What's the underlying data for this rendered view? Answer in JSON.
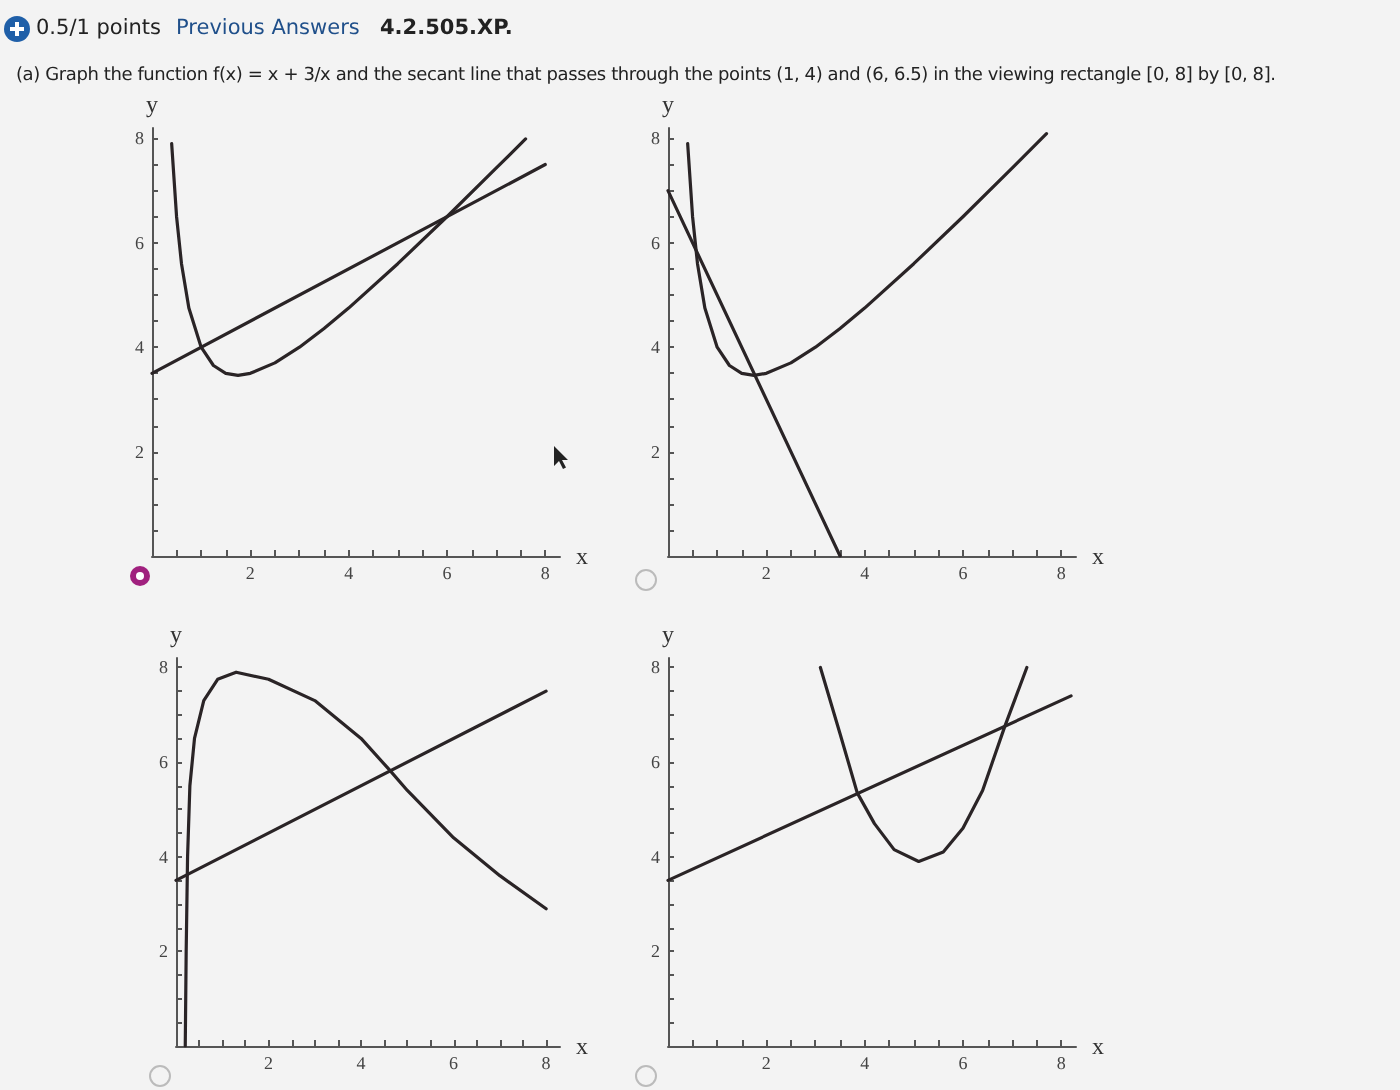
{
  "chart_data": [
    {
      "type": "other",
      "annotations": [
        "0.5/1 points",
        "Previous Answers",
        "4.2.505.XP.",
        "(a) Graph the function f(x) = x + 3/x and the secant line that passes through the points (1, 4) and (6, 6.5) in the viewing rectangle [0, 8] by [0, 8]."
      ]
    },
    {
      "type": "line",
      "xlabel": "x",
      "ylabel": "y",
      "xlim": [
        0,
        8.3
      ],
      "ylim": [
        0,
        8.2
      ],
      "xticks": [
        {
          "value": 0.5,
          "label": null
        },
        {
          "value": 1,
          "label": null
        },
        {
          "value": 1.5,
          "label": null
        },
        2,
        {
          "value": 2.5,
          "label": null
        },
        {
          "value": 3,
          "label": null
        },
        {
          "value": 3.5,
          "label": null
        },
        4,
        {
          "value": 4.5,
          "label": null
        },
        {
          "value": 5,
          "label": null
        },
        {
          "value": 5.5,
          "label": null
        },
        6,
        {
          "value": 6.5,
          "label": null
        },
        {
          "value": 7,
          "label": null
        },
        {
          "value": 7.5,
          "label": null
        },
        8
      ],
      "yticks": [
        {
          "value": 0.5,
          "label": null
        },
        {
          "value": 1,
          "label": null
        },
        {
          "value": 1.5,
          "label": null
        },
        2,
        {
          "value": 2.5,
          "label": null
        },
        {
          "value": 3,
          "label": null
        },
        {
          "value": 3.5,
          "label": null
        },
        4,
        {
          "value": 4.5,
          "label": null
        },
        {
          "value": 5,
          "label": null
        },
        {
          "value": 5.5,
          "label": null
        },
        6,
        {
          "value": 6.5,
          "label": null
        },
        {
          "value": 7,
          "label": null
        },
        {
          "value": 7.5,
          "label": null
        },
        8
      ],
      "marker": "none",
      "series": [
        {
          "color": "#2a2426",
          "x": [
            0.4,
            0.5,
            0.6,
            0.75,
            1,
            1.25,
            1.5,
            1.75,
            2,
            2.5,
            3,
            3.5,
            4,
            5,
            6,
            7,
            7.6
          ],
          "values": [
            7.9,
            6.5,
            5.6,
            4.75,
            4,
            3.65,
            3.5,
            3.46,
            3.5,
            3.7,
            4,
            4.36,
            4.75,
            5.6,
            6.5,
            7.43,
            7.99
          ]
        },
        {
          "color": "#2a2426",
          "x": [
            0,
            8
          ],
          "values": [
            3.5,
            7.5
          ]
        }
      ]
    },
    {
      "type": "line",
      "xlabel": "x",
      "ylabel": "y",
      "xlim": [
        0,
        8.3
      ],
      "ylim": [
        0,
        8.2
      ],
      "xticks": [
        {
          "value": 0.5,
          "label": null
        },
        {
          "value": 1,
          "label": null
        },
        {
          "value": 1.5,
          "label": null
        },
        2,
        {
          "value": 2.5,
          "label": null
        },
        {
          "value": 3,
          "label": null
        },
        {
          "value": 3.5,
          "label": null
        },
        4,
        {
          "value": 4.5,
          "label": null
        },
        {
          "value": 5,
          "label": null
        },
        {
          "value": 5.5,
          "label": null
        },
        6,
        {
          "value": 6.5,
          "label": null
        },
        {
          "value": 7,
          "label": null
        },
        {
          "value": 7.5,
          "label": null
        },
        8
      ],
      "yticks": [
        {
          "value": 0.5,
          "label": null
        },
        {
          "value": 1,
          "label": null
        },
        {
          "value": 1.5,
          "label": null
        },
        2,
        {
          "value": 2.5,
          "label": null
        },
        {
          "value": 3,
          "label": null
        },
        {
          "value": 3.5,
          "label": null
        },
        4,
        {
          "value": 4.5,
          "label": null
        },
        {
          "value": 5,
          "label": null
        },
        {
          "value": 5.5,
          "label": null
        },
        6,
        {
          "value": 6.5,
          "label": null
        },
        {
          "value": 7,
          "label": null
        },
        {
          "value": 7.5,
          "label": null
        },
        8
      ],
      "marker": "none",
      "series": [
        {
          "color": "#2a2426",
          "x": [
            0.4,
            0.5,
            0.6,
            0.75,
            1,
            1.25,
            1.5,
            1.75,
            2,
            2.5,
            3,
            3.5,
            4,
            5,
            6,
            7,
            7.7
          ],
          "values": [
            7.9,
            6.5,
            5.6,
            4.75,
            4,
            3.65,
            3.5,
            3.46,
            3.5,
            3.7,
            4,
            4.36,
            4.75,
            5.6,
            6.5,
            7.43,
            8.09
          ]
        },
        {
          "color": "#2a2426",
          "x": [
            0,
            3.5
          ],
          "values": [
            7,
            0
          ]
        }
      ]
    },
    {
      "type": "line",
      "xlabel": "x",
      "ylabel": "y",
      "xlim": [
        0,
        8.3
      ],
      "ylim": [
        0,
        8.2
      ],
      "xticks": [
        {
          "value": 0.5,
          "label": null
        },
        {
          "value": 1,
          "label": null
        },
        {
          "value": 1.5,
          "label": null
        },
        2,
        {
          "value": 2.5,
          "label": null
        },
        {
          "value": 3,
          "label": null
        },
        {
          "value": 3.5,
          "label": null
        },
        4,
        {
          "value": 4.5,
          "label": null
        },
        {
          "value": 5,
          "label": null
        },
        {
          "value": 5.5,
          "label": null
        },
        6,
        {
          "value": 6.5,
          "label": null
        },
        {
          "value": 7,
          "label": null
        },
        {
          "value": 7.5,
          "label": null
        },
        8
      ],
      "yticks": [
        {
          "value": 0.5,
          "label": null
        },
        {
          "value": 1,
          "label": null
        },
        {
          "value": 1.5,
          "label": null
        },
        2,
        {
          "value": 2.5,
          "label": null
        },
        {
          "value": 3,
          "label": null
        },
        {
          "value": 3.5,
          "label": null
        },
        4,
        {
          "value": 4.5,
          "label": null
        },
        {
          "value": 5,
          "label": null
        },
        {
          "value": 5.5,
          "label": null
        },
        6,
        {
          "value": 6.5,
          "label": null
        },
        {
          "value": 7,
          "label": null
        },
        {
          "value": 7.5,
          "label": null
        },
        8
      ],
      "marker": "none",
      "series": [
        {
          "color": "#2a2426",
          "x": [
            0.2,
            0.22,
            0.25,
            0.3,
            0.4,
            0.6,
            0.9,
            1.3,
            2,
            3,
            4,
            4.6,
            5,
            6,
            7,
            8
          ],
          "values": [
            0,
            2,
            4,
            5.5,
            6.5,
            7.3,
            7.75,
            7.9,
            7.75,
            7.3,
            6.5,
            5.85,
            5.4,
            4.4,
            3.6,
            2.9
          ]
        },
        {
          "color": "#2a2426",
          "x": [
            0,
            8
          ],
          "values": [
            3.5,
            7.5
          ]
        }
      ]
    },
    {
      "type": "line",
      "xlabel": "x",
      "ylabel": "y",
      "xlim": [
        0,
        8.3
      ],
      "ylim": [
        0,
        8.2
      ],
      "xticks": [
        {
          "value": 0.5,
          "label": null
        },
        {
          "value": 1,
          "label": null
        },
        {
          "value": 1.5,
          "label": null
        },
        2,
        {
          "value": 2.5,
          "label": null
        },
        {
          "value": 3,
          "label": null
        },
        {
          "value": 3.5,
          "label": null
        },
        4,
        {
          "value": 4.5,
          "label": null
        },
        {
          "value": 5,
          "label": null
        },
        {
          "value": 5.5,
          "label": null
        },
        6,
        {
          "value": 6.5,
          "label": null
        },
        {
          "value": 7,
          "label": null
        },
        {
          "value": 7.5,
          "label": null
        },
        8
      ],
      "yticks": [
        {
          "value": 0.5,
          "label": null
        },
        {
          "value": 1,
          "label": null
        },
        {
          "value": 1.5,
          "label": null
        },
        2,
        {
          "value": 2.5,
          "label": null
        },
        {
          "value": 3,
          "label": null
        },
        {
          "value": 3.5,
          "label": null
        },
        4,
        {
          "value": 4.5,
          "label": null
        },
        {
          "value": 5,
          "label": null
        },
        {
          "value": 5.5,
          "label": null
        },
        6,
        {
          "value": 6.5,
          "label": null
        },
        {
          "value": 7,
          "label": null
        },
        {
          "value": 7.5,
          "label": null
        },
        8
      ],
      "marker": "none",
      "series": [
        {
          "color": "#2a2426",
          "x": [
            3.1,
            3.5,
            3.85,
            4.2,
            4.6,
            5.1,
            5.6,
            6,
            6.4,
            6.85,
            7.3
          ],
          "values": [
            8,
            6.6,
            5.35,
            4.7,
            4.15,
            3.9,
            4.1,
            4.6,
            5.4,
            6.75,
            8
          ]
        },
        {
          "color": "#2a2426",
          "x": [
            0,
            8.2
          ],
          "values": [
            3.5,
            7.4
          ]
        }
      ]
    }
  ]
}
